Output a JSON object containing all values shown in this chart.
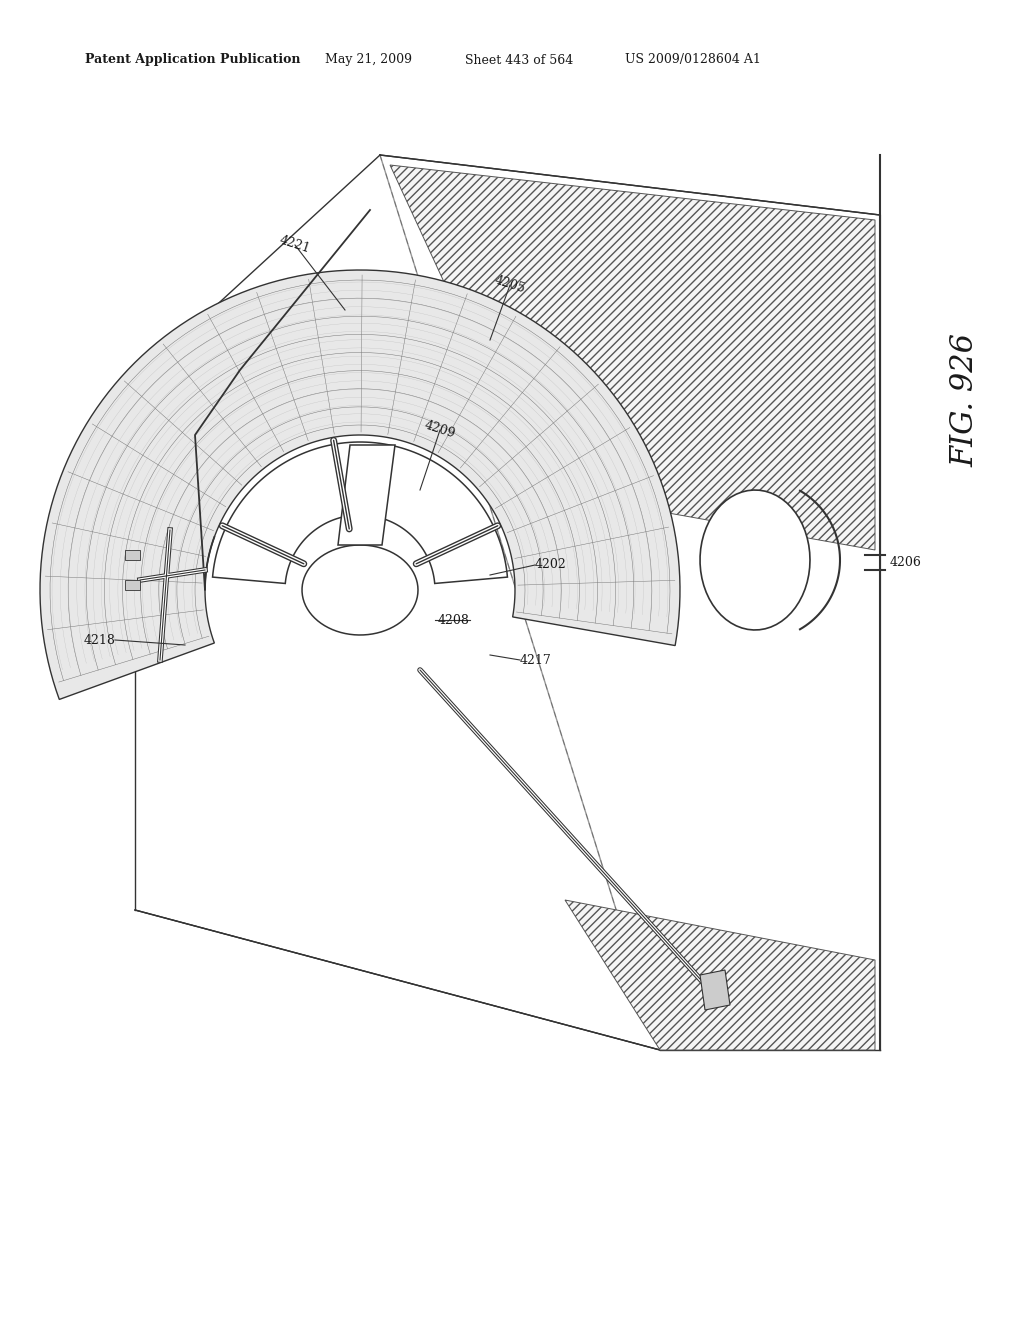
{
  "bg_color": "#ffffff",
  "header_text": "Patent Application Publication",
  "header_date": "May 21, 2009",
  "header_sheet": "Sheet 443 of 564",
  "header_patent": "US 2009/0128604 A1",
  "fig_label": "FIG. 926",
  "fig_number": "926",
  "line_color": "#333333",
  "hatch_color": "#555555",
  "label_fontsize": 9,
  "fig_label_fontsize": 22
}
